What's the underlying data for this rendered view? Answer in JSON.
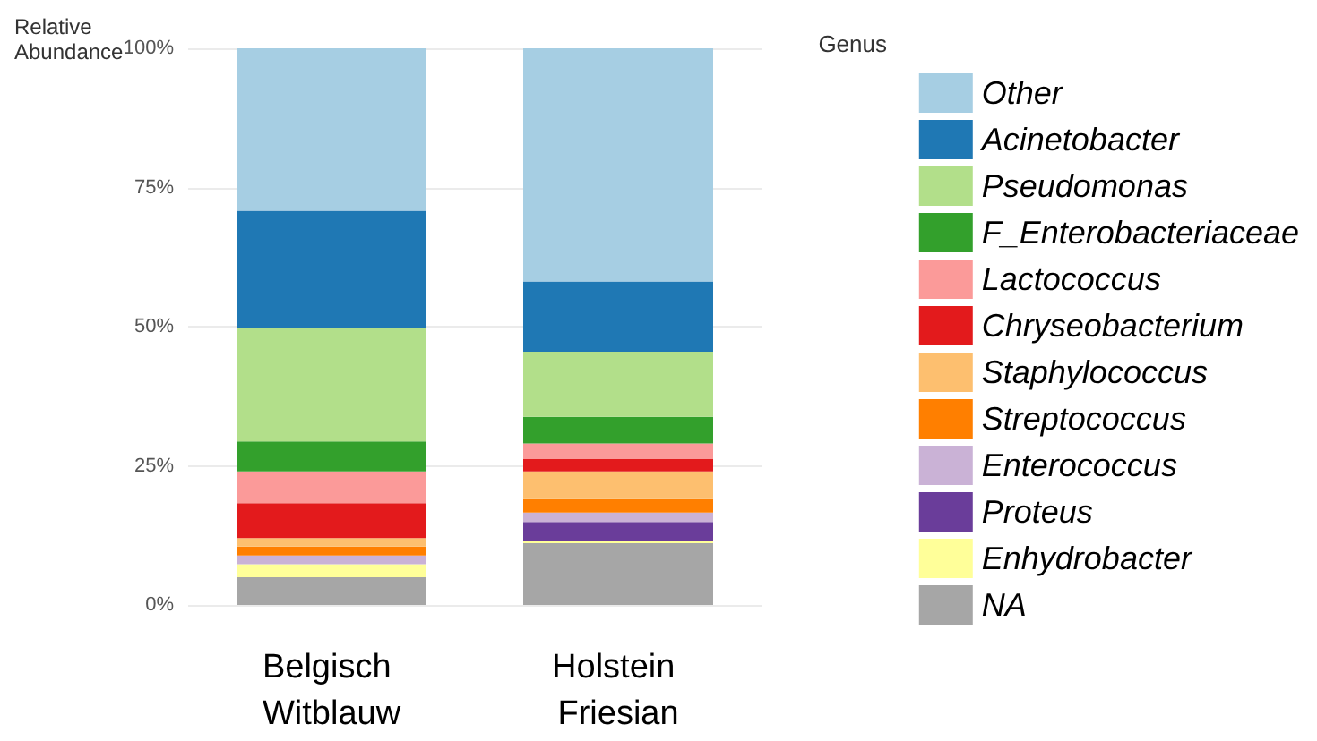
{
  "chart_data": {
    "type": "bar",
    "stacked": true,
    "ylabel": "Relative Abundance",
    "legend_title": "Genus",
    "legend": "right",
    "grid": "y",
    "categories": [
      "Belgisch Witblauw",
      "Holstein Friesian"
    ],
    "ylim": [
      0,
      100
    ],
    "yticks": [
      {
        "value": 0,
        "label": "0%"
      },
      {
        "value": 25,
        "label": "25%"
      },
      {
        "value": 50,
        "label": "50%"
      },
      {
        "value": 75,
        "label": "75%"
      },
      {
        "value": 100,
        "label": "100%"
      }
    ],
    "series": [
      {
        "name": "NA",
        "color": "#a6a6a6",
        "values": [
          5,
          11.1
        ]
      },
      {
        "name": "Enhydrobacter",
        "color": "#ffff99",
        "values": [
          2.3,
          0.4
        ]
      },
      {
        "name": "Proteus",
        "color": "#6a3d9a",
        "values": [
          0,
          3.4
        ]
      },
      {
        "name": "Enterococcus",
        "color": "#cab2d6",
        "values": [
          1.6,
          1.7
        ]
      },
      {
        "name": "Streptococcus",
        "color": "#ff7f00",
        "values": [
          1.6,
          2.4
        ]
      },
      {
        "name": "Staphylococcus",
        "color": "#fdbf6f",
        "values": [
          1.5,
          5.0
        ]
      },
      {
        "name": "Chryseobacterium",
        "color": "#e31a1c",
        "values": [
          6.3,
          2.2
        ]
      },
      {
        "name": "Lactococcus",
        "color": "#fb9a99",
        "values": [
          5.7,
          2.8
        ]
      },
      {
        "name": "F_Enterobacteriaceae",
        "color": "#33a02c",
        "values": [
          5.4,
          4.8
        ]
      },
      {
        "name": "Pseudomonas",
        "color": "#b2df8a",
        "values": [
          20.3,
          11.7
        ]
      },
      {
        "name": "Acinetobacter",
        "color": "#1f78b4",
        "values": [
          21.1,
          12.6
        ]
      },
      {
        "name": "Other",
        "color": "#a6cee3",
        "values": [
          29.2,
          41.9
        ]
      }
    ]
  }
}
